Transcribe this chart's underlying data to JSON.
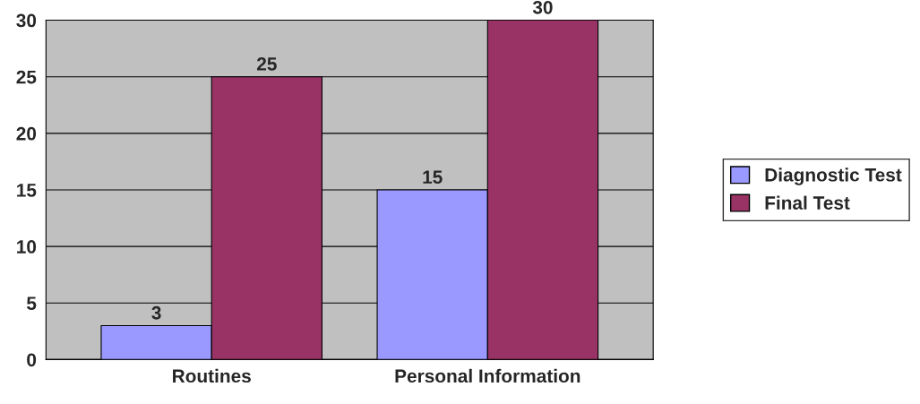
{
  "chart_data": {
    "type": "bar",
    "categories": [
      "Routines",
      "Personal Information"
    ],
    "series": [
      {
        "name": "Diagnostic Test",
        "color": "#9999ff",
        "values": [
          3,
          15
        ]
      },
      {
        "name": "Final Test",
        "color": "#993366",
        "values": [
          25,
          30
        ]
      }
    ],
    "ylim": [
      0,
      30
    ],
    "yticks": [
      0,
      5,
      10,
      15,
      20,
      25,
      30
    ],
    "grid": "y",
    "legend": "right",
    "data_labels": true
  }
}
